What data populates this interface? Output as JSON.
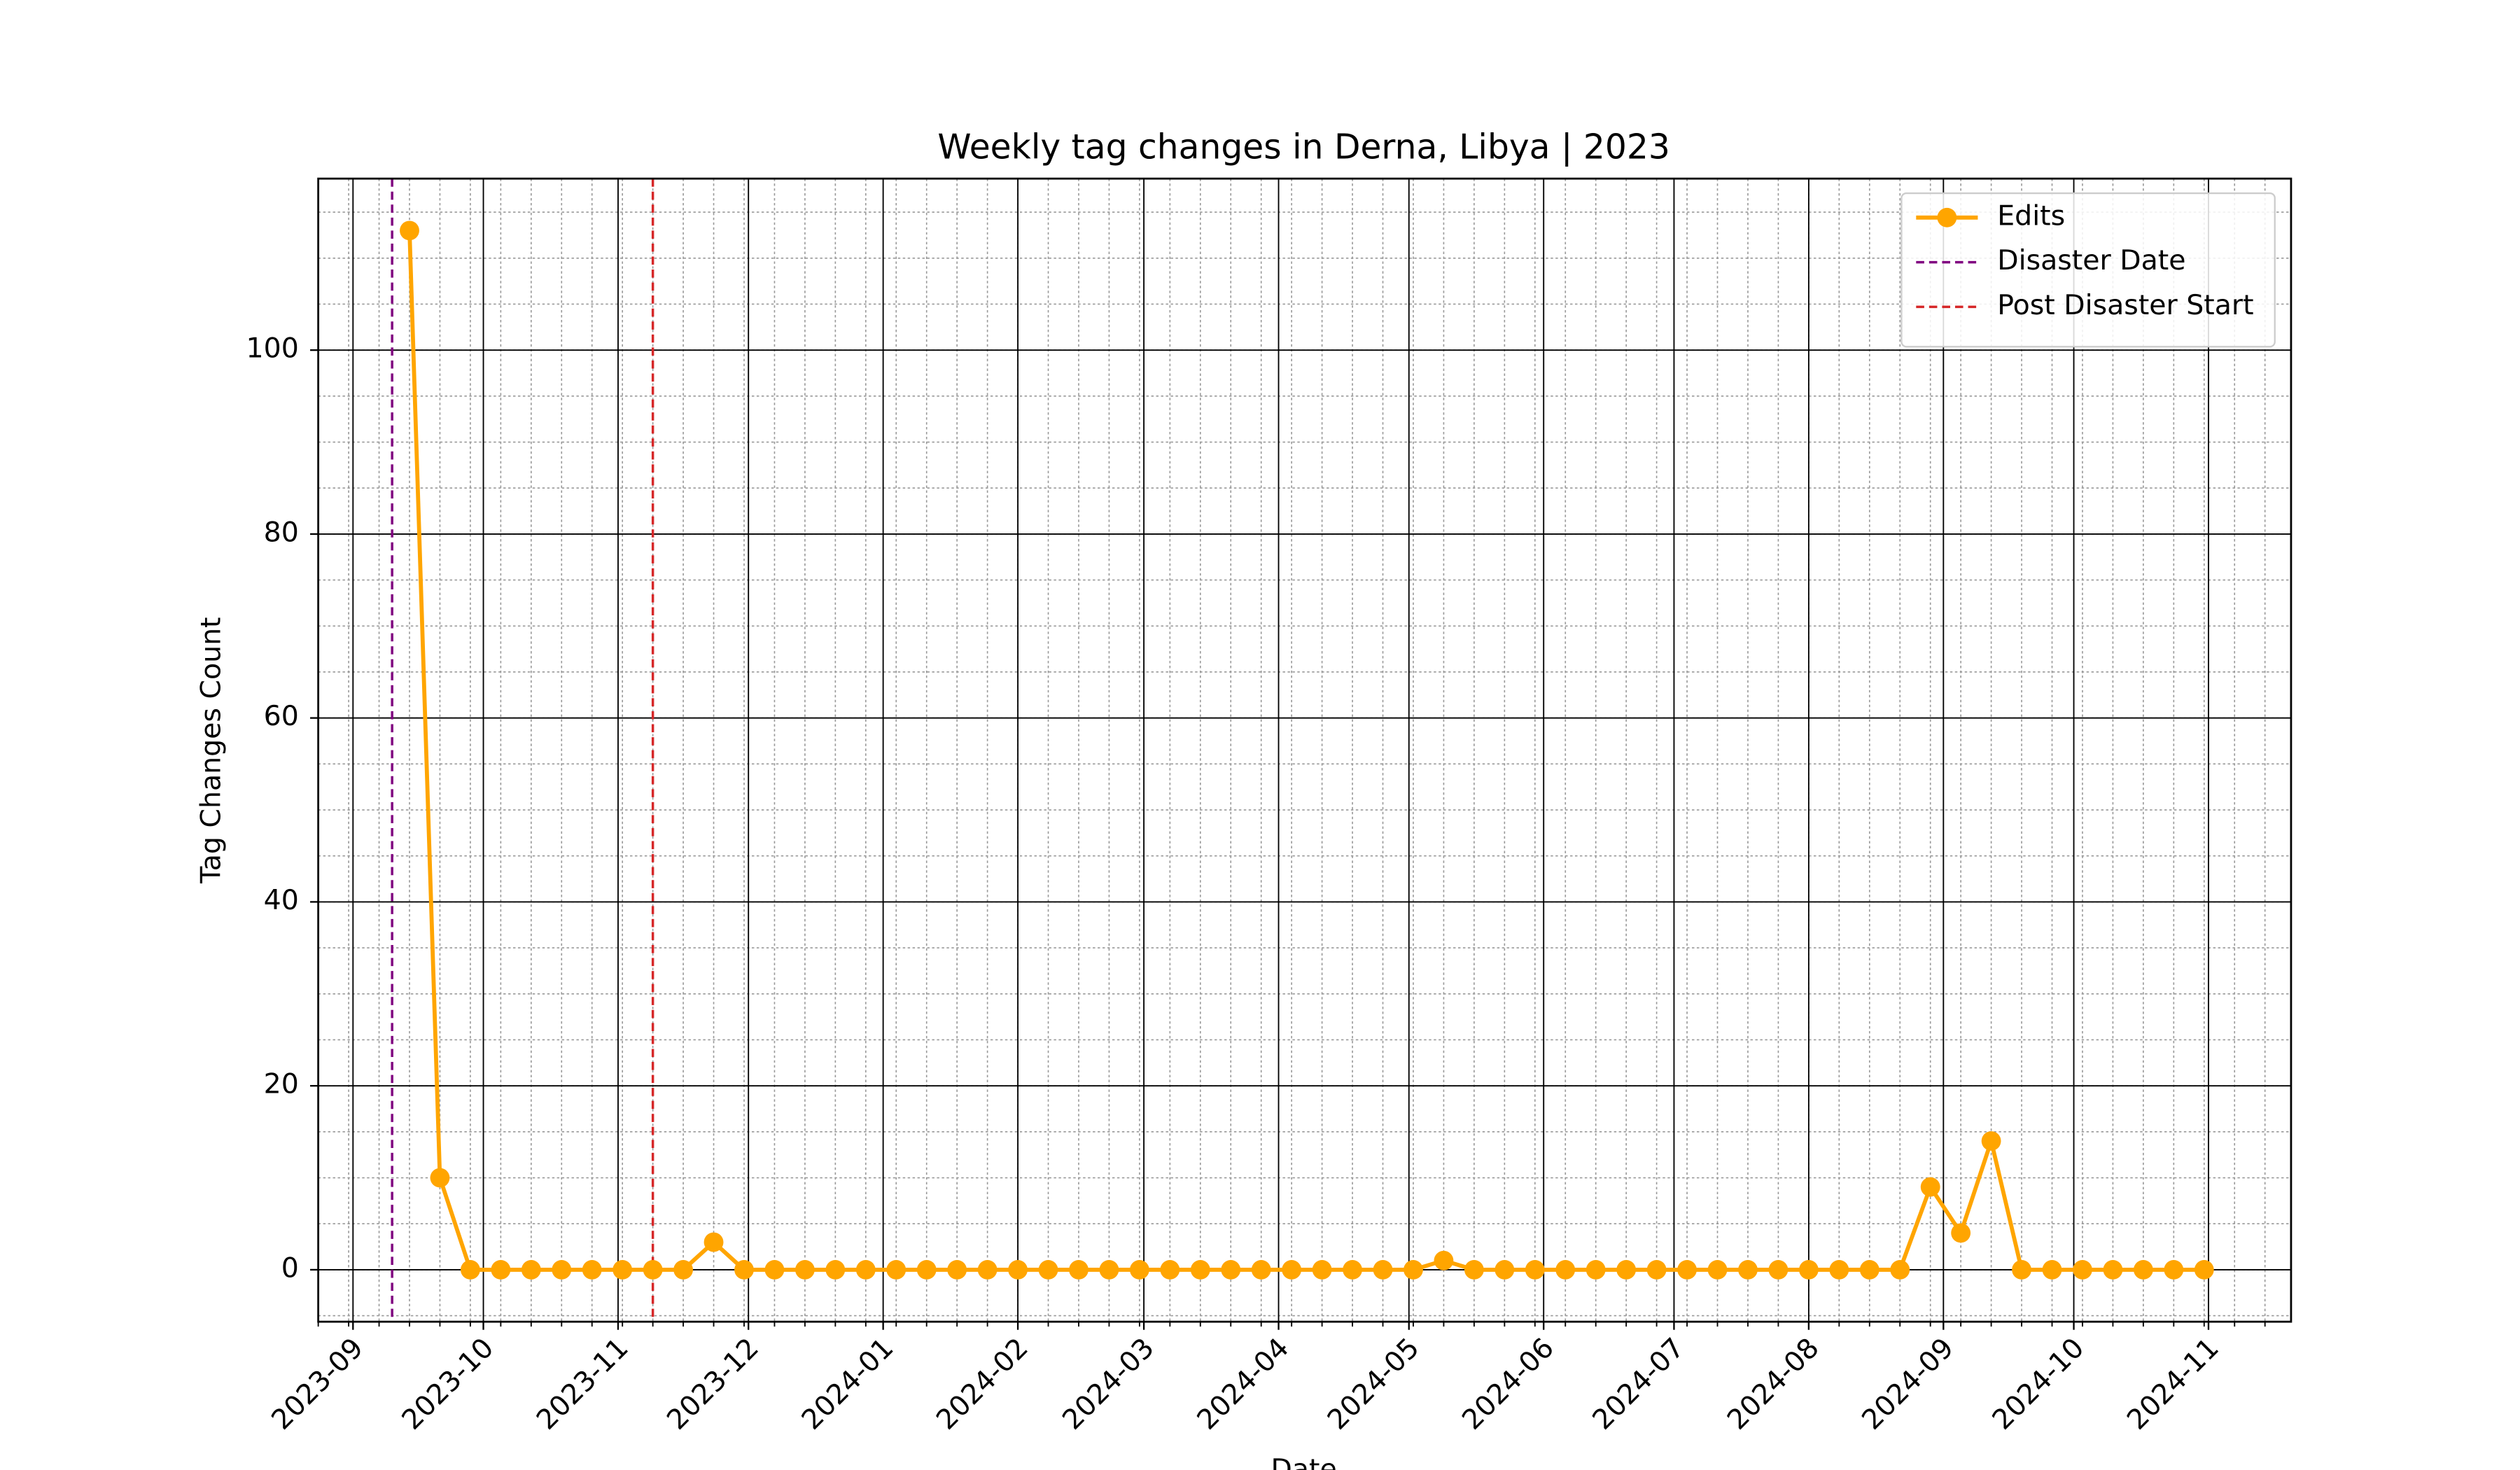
{
  "chart_data": {
    "type": "line",
    "title": "Weekly tag changes in Derna, Libya | 2023",
    "xlabel": "Date",
    "ylabel": "Tag Changes Count",
    "x": [
      "2023-09-14",
      "2023-09-21",
      "2023-09-28",
      "2023-10-05",
      "2023-10-12",
      "2023-10-19",
      "2023-10-26",
      "2023-11-02",
      "2023-11-09",
      "2023-11-16",
      "2023-11-23",
      "2023-11-30",
      "2023-12-07",
      "2023-12-14",
      "2023-12-21",
      "2023-12-28",
      "2024-01-04",
      "2024-01-11",
      "2024-01-18",
      "2024-01-25",
      "2024-02-01",
      "2024-02-08",
      "2024-02-15",
      "2024-02-22",
      "2024-02-29",
      "2024-03-07",
      "2024-03-14",
      "2024-03-21",
      "2024-03-28",
      "2024-04-04",
      "2024-04-11",
      "2024-04-18",
      "2024-04-25",
      "2024-05-02",
      "2024-05-09",
      "2024-05-16",
      "2024-05-23",
      "2024-05-30",
      "2024-06-06",
      "2024-06-13",
      "2024-06-20",
      "2024-06-27",
      "2024-07-04",
      "2024-07-11",
      "2024-07-18",
      "2024-07-25",
      "2024-08-01",
      "2024-08-08",
      "2024-08-15",
      "2024-08-22",
      "2024-08-29",
      "2024-09-05",
      "2024-09-12",
      "2024-09-19",
      "2024-09-26",
      "2024-10-03",
      "2024-10-10",
      "2024-10-17",
      "2024-10-24",
      "2024-10-31"
    ],
    "series": [
      {
        "name": "Edits",
        "color": "#ffa500",
        "values": [
          113,
          10,
          0,
          0,
          0,
          0,
          0,
          0,
          0,
          0,
          3,
          0,
          0,
          0,
          0,
          0,
          0,
          0,
          0,
          0,
          0,
          0,
          0,
          0,
          0,
          0,
          0,
          0,
          0,
          0,
          0,
          0,
          0,
          0,
          1,
          0,
          0,
          0,
          0,
          0,
          0,
          0,
          0,
          0,
          0,
          0,
          0,
          0,
          0,
          0,
          9,
          4,
          14,
          0,
          0,
          0,
          0,
          0,
          0,
          0
        ]
      }
    ],
    "vlines": [
      {
        "name": "Disaster Date",
        "x": "2023-09-10",
        "color": "#800080"
      },
      {
        "name": "Post Disaster Start",
        "x": "2023-11-09",
        "color": "#d62728"
      }
    ],
    "xlim": [
      "2023-08-24",
      "2024-11-20"
    ],
    "xticks": [
      {
        "value": "2023-09-01",
        "label": "2023-09"
      },
      {
        "value": "2023-10-01",
        "label": "2023-10"
      },
      {
        "value": "2023-11-01",
        "label": "2023-11"
      },
      {
        "value": "2023-12-01",
        "label": "2023-12"
      },
      {
        "value": "2024-01-01",
        "label": "2024-01"
      },
      {
        "value": "2024-02-01",
        "label": "2024-02"
      },
      {
        "value": "2024-03-01",
        "label": "2024-03"
      },
      {
        "value": "2024-04-01",
        "label": "2024-04"
      },
      {
        "value": "2024-05-01",
        "label": "2024-05"
      },
      {
        "value": "2024-06-01",
        "label": "2024-06"
      },
      {
        "value": "2024-07-01",
        "label": "2024-07"
      },
      {
        "value": "2024-08-01",
        "label": "2024-08"
      },
      {
        "value": "2024-09-01",
        "label": "2024-09"
      },
      {
        "value": "2024-10-01",
        "label": "2024-10"
      },
      {
        "value": "2024-11-01",
        "label": "2024-11"
      }
    ],
    "ylim": [
      -5.65,
      118.65
    ],
    "yticks": [
      0,
      20,
      40,
      60,
      80,
      100
    ],
    "grid": true,
    "minor_grid": true,
    "legend": "upper right"
  }
}
